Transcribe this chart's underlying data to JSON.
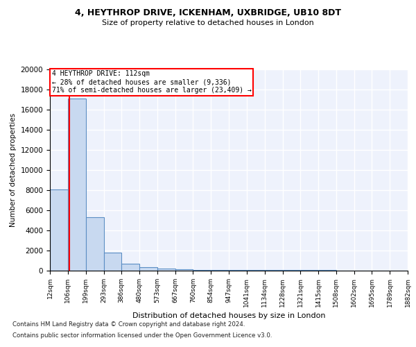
{
  "title1": "4, HEYTHROP DRIVE, ICKENHAM, UXBRIDGE, UB10 8DT",
  "title2": "Size of property relative to detached houses in London",
  "xlabel": "Distribution of detached houses by size in London",
  "ylabel": "Number of detached properties",
  "bin_edges": [
    12,
    106,
    199,
    293,
    386,
    480,
    573,
    667,
    760,
    854,
    947,
    1041,
    1134,
    1228,
    1321,
    1415,
    1508,
    1602,
    1695,
    1789,
    1882
  ],
  "bar_heights": [
    8100,
    17100,
    5300,
    1800,
    700,
    350,
    200,
    130,
    100,
    80,
    65,
    55,
    50,
    45,
    40,
    35,
    30,
    28,
    25,
    22
  ],
  "bar_color": "#c8d9f0",
  "bar_edge_color": "#5b8ec4",
  "property_line_x": 112,
  "annotation_title": "4 HEYTHROP DRIVE: 112sqm",
  "annotation_line1": "← 28% of detached houses are smaller (9,336)",
  "annotation_line2": "71% of semi-detached houses are larger (23,409) →",
  "annotation_box_color": "white",
  "annotation_box_edge_color": "red",
  "red_line_color": "red",
  "ylim": [
    0,
    20000
  ],
  "yticks": [
    0,
    2000,
    4000,
    6000,
    8000,
    10000,
    12000,
    14000,
    16000,
    18000,
    20000
  ],
  "tick_labels": [
    "12sqm",
    "106sqm",
    "199sqm",
    "293sqm",
    "386sqm",
    "480sqm",
    "573sqm",
    "667sqm",
    "760sqm",
    "854sqm",
    "947sqm",
    "1041sqm",
    "1134sqm",
    "1228sqm",
    "1321sqm",
    "1415sqm",
    "1508sqm",
    "1602sqm",
    "1695sqm",
    "1789sqm",
    "1882sqm"
  ],
  "footnote1": "Contains HM Land Registry data © Crown copyright and database right 2024.",
  "footnote2": "Contains public sector information licensed under the Open Government Licence v3.0.",
  "background_color": "#eef2fc",
  "grid_color": "white"
}
